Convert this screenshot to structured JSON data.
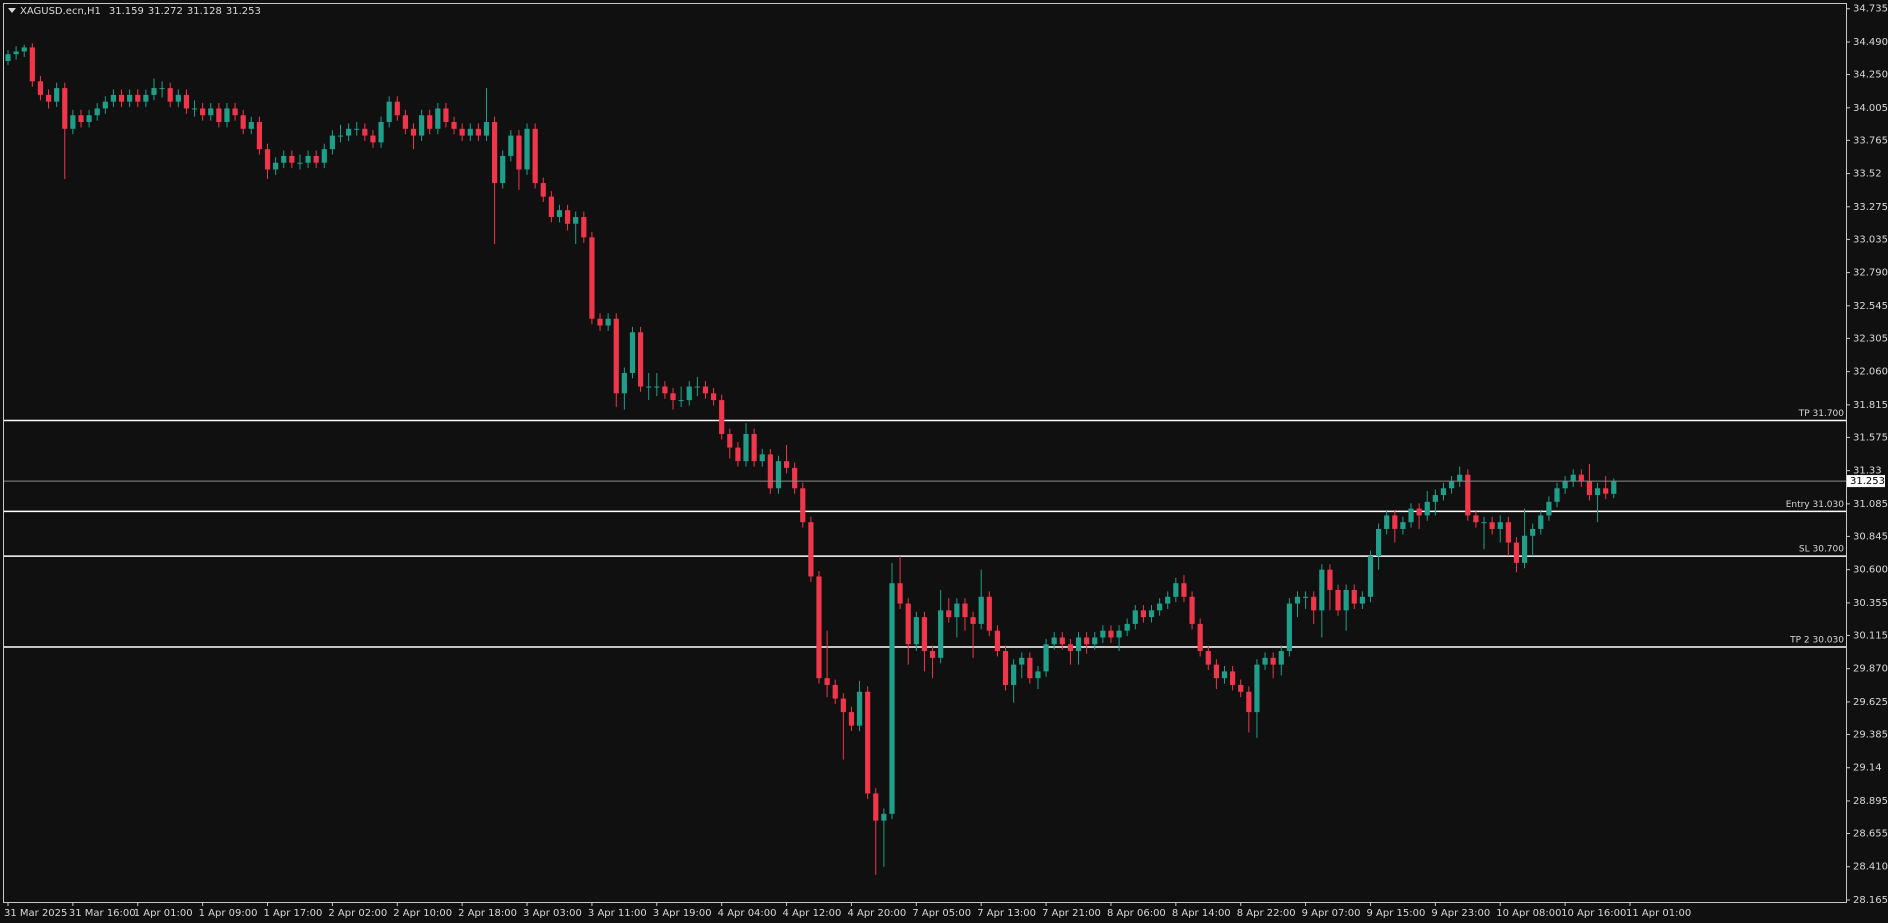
{
  "chart_data": {
    "type": "candlestick",
    "symbol": "XAGUSD.ecn,H1",
    "up_color": "#1f9e89",
    "down_color": "#f0364a",
    "background": "#101010",
    "ylim": [
      28.15,
      34.77
    ],
    "yticks": [
      34.735,
      {
        "value": 34.49,
        "label": "34.490"
      },
      {
        "value": 34.25,
        "label": "34.250"
      },
      34.005,
      33.765,
      33.52,
      33.275,
      33.035,
      {
        "value": 32.79,
        "label": "32.790"
      },
      32.545,
      32.305,
      {
        "value": 32.06,
        "label": "32.060"
      },
      31.815,
      31.575,
      31.33,
      31.085,
      30.845,
      {
        "value": 30.6,
        "label": "30.600"
      },
      30.355,
      30.115,
      {
        "value": 29.87,
        "label": "29.870"
      },
      29.625,
      29.385,
      29.14,
      28.895,
      28.655,
      {
        "value": 28.41,
        "label": "28.410"
      },
      28.165
    ],
    "xticks": [
      {
        "value": 0,
        "label": "31 Mar 2025"
      },
      {
        "value": 8,
        "label": "31 Mar 16:00"
      },
      {
        "value": 16,
        "label": "1 Apr 01:00"
      },
      {
        "value": 24,
        "label": "1 Apr 09:00"
      },
      {
        "value": 32,
        "label": "1 Apr 17:00"
      },
      {
        "value": 40,
        "label": "2 Apr 02:00"
      },
      {
        "value": 48,
        "label": "2 Apr 10:00"
      },
      {
        "value": 56,
        "label": "2 Apr 18:00"
      },
      {
        "value": 64,
        "label": "3 Apr 03:00"
      },
      {
        "value": 72,
        "label": "3 Apr 11:00"
      },
      {
        "value": 80,
        "label": "3 Apr 19:00"
      },
      {
        "value": 88,
        "label": "4 Apr 04:00"
      },
      {
        "value": 96,
        "label": "4 Apr 12:00"
      },
      {
        "value": 104,
        "label": "4 Apr 20:00"
      },
      {
        "value": 112,
        "label": "7 Apr 05:00"
      },
      {
        "value": 120,
        "label": "7 Apr 13:00"
      },
      {
        "value": 128,
        "label": "7 Apr 21:00"
      },
      {
        "value": 136,
        "label": "8 Apr 06:00"
      },
      {
        "value": 144,
        "label": "8 Apr 14:00"
      },
      {
        "value": 152,
        "label": "8 Apr 22:00"
      },
      {
        "value": 160,
        "label": "9 Apr 07:00"
      },
      {
        "value": 168,
        "label": "9 Apr 15:00"
      },
      {
        "value": 176,
        "label": "9 Apr 23:00"
      },
      {
        "value": 184,
        "label": "10 Apr 08:00"
      },
      {
        "value": 192,
        "label": "10 Apr 16:00"
      },
      {
        "value": 200,
        "label": "11 Apr 01:00"
      }
    ],
    "levels": [
      {
        "name": "TP 31.700",
        "value": 31.7
      },
      {
        "name": "Entry 31.030",
        "value": 31.03
      },
      {
        "name": "SL 30.700",
        "value": 30.7
      },
      {
        "name": "TP 2 30.030",
        "value": 30.03
      }
    ],
    "candles": [
      [
        34.35,
        34.43,
        34.32,
        34.4
      ],
      [
        34.4,
        34.46,
        34.36,
        34.42
      ],
      [
        34.42,
        34.47,
        34.38,
        34.45
      ],
      [
        34.45,
        34.48,
        34.16,
        34.2
      ],
      [
        34.2,
        34.24,
        34.06,
        34.1
      ],
      [
        34.1,
        34.14,
        34.0,
        34.05
      ],
      [
        34.05,
        34.19,
        34.01,
        34.15
      ],
      [
        34.15,
        34.19,
        33.48,
        33.85
      ],
      [
        33.85,
        33.99,
        33.81,
        33.95
      ],
      [
        33.95,
        33.99,
        33.86,
        33.9
      ],
      [
        33.9,
        33.99,
        33.86,
        33.95
      ],
      [
        33.95,
        34.04,
        33.91,
        34.0
      ],
      [
        34.0,
        34.09,
        33.96,
        34.05
      ],
      [
        34.05,
        34.14,
        34.01,
        34.1
      ],
      [
        34.1,
        34.14,
        34.01,
        34.05
      ],
      [
        34.05,
        34.14,
        34.01,
        34.1
      ],
      [
        34.1,
        34.14,
        34.01,
        34.05
      ],
      [
        34.05,
        34.14,
        34.01,
        34.1
      ],
      [
        34.1,
        34.22,
        34.06,
        34.15
      ],
      [
        34.15,
        34.2,
        34.08,
        34.15
      ],
      [
        34.15,
        34.19,
        34.01,
        34.05
      ],
      [
        34.05,
        34.14,
        34.01,
        34.1
      ],
      [
        34.1,
        34.14,
        33.96,
        34.0
      ],
      [
        34.0,
        34.06,
        33.94,
        34.0
      ],
      [
        34.0,
        34.04,
        33.91,
        33.95
      ],
      [
        33.95,
        34.04,
        33.91,
        34.0
      ],
      [
        34.0,
        34.04,
        33.86,
        33.9
      ],
      [
        33.9,
        34.04,
        33.86,
        34.0
      ],
      [
        34.0,
        34.04,
        33.91,
        33.95
      ],
      [
        33.95,
        33.99,
        33.81,
        33.85
      ],
      [
        33.85,
        33.94,
        33.81,
        33.9
      ],
      [
        33.9,
        33.94,
        33.66,
        33.7
      ],
      [
        33.7,
        33.74,
        33.48,
        33.55
      ],
      [
        33.55,
        33.64,
        33.51,
        33.6
      ],
      [
        33.6,
        33.69,
        33.56,
        33.65
      ],
      [
        33.65,
        33.69,
        33.56,
        33.6
      ],
      [
        33.6,
        33.66,
        33.55,
        33.6
      ],
      [
        33.6,
        33.69,
        33.56,
        33.65
      ],
      [
        33.65,
        33.69,
        33.56,
        33.6
      ],
      [
        33.6,
        33.74,
        33.56,
        33.7
      ],
      [
        33.7,
        33.84,
        33.66,
        33.8
      ],
      [
        33.8,
        33.88,
        33.75,
        33.8
      ],
      [
        33.8,
        33.89,
        33.76,
        33.85
      ],
      [
        33.85,
        33.9,
        33.8,
        33.85
      ],
      [
        33.85,
        33.89,
        33.76,
        33.8
      ],
      [
        33.8,
        33.84,
        33.71,
        33.75
      ],
      [
        33.75,
        33.94,
        33.71,
        33.9
      ],
      [
        33.9,
        34.09,
        33.86,
        34.05
      ],
      [
        34.05,
        34.09,
        33.91,
        33.95
      ],
      [
        33.95,
        33.99,
        33.81,
        33.85
      ],
      [
        33.85,
        33.89,
        33.7,
        33.8
      ],
      [
        33.8,
        33.99,
        33.76,
        33.95
      ],
      [
        33.95,
        33.99,
        33.81,
        33.85
      ],
      [
        33.85,
        34.04,
        33.81,
        34.0
      ],
      [
        34.0,
        34.04,
        33.86,
        33.9
      ],
      [
        33.9,
        33.94,
        33.81,
        33.85
      ],
      [
        33.85,
        33.89,
        33.76,
        33.8
      ],
      [
        33.8,
        33.89,
        33.76,
        33.85
      ],
      [
        33.85,
        33.89,
        33.76,
        33.8
      ],
      [
        33.8,
        34.15,
        33.76,
        33.9
      ],
      [
        33.9,
        33.94,
        33.0,
        33.45
      ],
      [
        33.45,
        33.69,
        33.41,
        33.65
      ],
      [
        33.65,
        33.84,
        33.61,
        33.8
      ],
      [
        33.8,
        33.84,
        33.4,
        33.55
      ],
      [
        33.55,
        33.89,
        33.51,
        33.85
      ],
      [
        33.85,
        33.89,
        33.41,
        33.45
      ],
      [
        33.45,
        33.49,
        33.31,
        33.35
      ],
      [
        33.35,
        33.39,
        33.16,
        33.2
      ],
      [
        33.2,
        33.29,
        33.16,
        33.25
      ],
      [
        33.25,
        33.29,
        33.1,
        33.15
      ],
      [
        33.15,
        33.24,
        33.0,
        33.2
      ],
      [
        33.2,
        33.24,
        33.01,
        33.05
      ],
      [
        33.05,
        33.09,
        32.41,
        32.45
      ],
      [
        32.45,
        32.49,
        32.36,
        32.4
      ],
      [
        32.4,
        32.49,
        32.36,
        32.45
      ],
      [
        32.45,
        32.49,
        31.8,
        31.9
      ],
      [
        31.9,
        32.09,
        31.78,
        32.05
      ],
      [
        32.05,
        32.39,
        32.01,
        32.35
      ],
      [
        32.35,
        32.39,
        31.91,
        31.95
      ],
      [
        31.95,
        32.05,
        31.85,
        31.95
      ],
      [
        31.95,
        32.05,
        31.88,
        31.95
      ],
      [
        31.95,
        31.99,
        31.86,
        31.9
      ],
      [
        31.9,
        31.94,
        31.78,
        31.85
      ],
      [
        31.85,
        31.95,
        31.8,
        31.85
      ],
      [
        31.85,
        31.99,
        31.81,
        31.95
      ],
      [
        31.95,
        32.02,
        31.88,
        31.95
      ],
      [
        31.95,
        31.99,
        31.86,
        31.9
      ],
      [
        31.9,
        31.94,
        31.81,
        31.85
      ],
      [
        31.85,
        31.89,
        31.56,
        31.6
      ],
      [
        31.6,
        31.64,
        31.42,
        31.5
      ],
      [
        31.5,
        31.54,
        31.36,
        31.4
      ],
      [
        31.4,
        31.68,
        31.36,
        31.6
      ],
      [
        31.6,
        31.64,
        31.36,
        31.4
      ],
      [
        31.4,
        31.49,
        31.36,
        31.45
      ],
      [
        31.45,
        31.49,
        31.16,
        31.2
      ],
      [
        31.2,
        31.44,
        31.16,
        31.4
      ],
      [
        31.4,
        31.52,
        31.31,
        31.35
      ],
      [
        31.35,
        31.39,
        31.16,
        31.2
      ],
      [
        31.2,
        31.24,
        30.91,
        30.95
      ],
      [
        30.95,
        30.99,
        30.51,
        30.55
      ],
      [
        30.55,
        30.59,
        29.76,
        29.8
      ],
      [
        29.8,
        30.15,
        29.66,
        29.75
      ],
      [
        29.75,
        29.79,
        29.61,
        29.65
      ],
      [
        29.65,
        29.69,
        29.2,
        29.55
      ],
      [
        29.55,
        29.59,
        29.41,
        29.45
      ],
      [
        29.45,
        29.78,
        29.41,
        29.7
      ],
      [
        29.7,
        29.74,
        28.91,
        28.95
      ],
      [
        28.95,
        28.99,
        28.35,
        28.75
      ],
      [
        28.75,
        28.84,
        28.41,
        28.8
      ],
      [
        28.8,
        30.65,
        28.76,
        30.5
      ],
      [
        30.5,
        30.7,
        30.31,
        30.35
      ],
      [
        30.35,
        30.39,
        29.9,
        30.05
      ],
      [
        30.05,
        30.29,
        30.0,
        30.25
      ],
      [
        30.25,
        30.29,
        29.85,
        30.0
      ],
      [
        30.0,
        30.04,
        29.8,
        29.95
      ],
      [
        29.95,
        30.45,
        29.91,
        30.3
      ],
      [
        30.3,
        30.39,
        30.21,
        30.25
      ],
      [
        30.25,
        30.39,
        30.1,
        30.35
      ],
      [
        30.35,
        30.39,
        30.15,
        30.25
      ],
      [
        30.25,
        30.29,
        29.95,
        30.2
      ],
      [
        30.2,
        30.6,
        30.16,
        30.4
      ],
      [
        30.4,
        30.44,
        30.11,
        30.15
      ],
      [
        30.15,
        30.19,
        29.96,
        30.0
      ],
      [
        30.0,
        30.04,
        29.71,
        29.75
      ],
      [
        29.75,
        29.94,
        29.62,
        29.9
      ],
      [
        29.9,
        29.99,
        29.8,
        29.95
      ],
      [
        29.95,
        29.99,
        29.76,
        29.8
      ],
      [
        29.8,
        29.89,
        29.72,
        29.85
      ],
      [
        29.85,
        30.09,
        29.81,
        30.05
      ],
      [
        30.05,
        30.14,
        30.01,
        30.1
      ],
      [
        30.1,
        30.14,
        30.01,
        30.05
      ],
      [
        30.05,
        30.09,
        29.9,
        30.0
      ],
      [
        30.0,
        30.14,
        29.9,
        30.1
      ],
      [
        30.1,
        30.14,
        29.98,
        30.05
      ],
      [
        30.05,
        30.14,
        30.01,
        30.1
      ],
      [
        30.1,
        30.19,
        30.06,
        30.15
      ],
      [
        30.15,
        30.19,
        30.06,
        30.1
      ],
      [
        30.1,
        30.19,
        30.0,
        30.15
      ],
      [
        30.15,
        30.24,
        30.11,
        30.2
      ],
      [
        30.2,
        30.34,
        30.16,
        30.3
      ],
      [
        30.3,
        30.34,
        30.21,
        30.25
      ],
      [
        30.25,
        30.34,
        30.21,
        30.3
      ],
      [
        30.3,
        30.39,
        30.26,
        30.35
      ],
      [
        30.35,
        30.44,
        30.31,
        30.4
      ],
      [
        30.4,
        30.54,
        30.36,
        30.5
      ],
      [
        30.5,
        30.56,
        30.36,
        30.4
      ],
      [
        30.4,
        30.44,
        30.16,
        30.2
      ],
      [
        30.2,
        30.24,
        29.96,
        30.0
      ],
      [
        30.0,
        30.04,
        29.86,
        29.9
      ],
      [
        29.9,
        29.94,
        29.72,
        29.8
      ],
      [
        29.8,
        29.89,
        29.76,
        29.85
      ],
      [
        29.85,
        29.89,
        29.71,
        29.75
      ],
      [
        29.75,
        29.79,
        29.66,
        29.7
      ],
      [
        29.7,
        29.74,
        29.4,
        29.55
      ],
      [
        29.55,
        29.94,
        29.36,
        29.9
      ],
      [
        29.9,
        29.99,
        29.86,
        29.95
      ],
      [
        29.95,
        29.99,
        29.8,
        29.9
      ],
      [
        29.9,
        30.04,
        29.82,
        30.0
      ],
      [
        30.0,
        30.39,
        29.96,
        30.35
      ],
      [
        30.35,
        30.44,
        30.25,
        30.4
      ],
      [
        30.4,
        30.44,
        30.31,
        30.4
      ],
      [
        30.4,
        30.44,
        30.2,
        30.3
      ],
      [
        30.3,
        30.64,
        30.1,
        30.6
      ],
      [
        30.6,
        30.64,
        30.3,
        30.45
      ],
      [
        30.45,
        30.49,
        30.26,
        30.3
      ],
      [
        30.3,
        30.49,
        30.15,
        30.45
      ],
      [
        30.45,
        30.49,
        30.31,
        30.35
      ],
      [
        30.35,
        30.44,
        30.31,
        30.4
      ],
      [
        30.4,
        30.74,
        30.36,
        30.7
      ],
      [
        30.7,
        30.94,
        30.6,
        30.9
      ],
      [
        30.9,
        31.04,
        30.86,
        31.0
      ],
      [
        31.0,
        31.04,
        30.8,
        30.9
      ],
      [
        30.9,
        30.99,
        30.86,
        30.95
      ],
      [
        30.95,
        31.09,
        30.91,
        31.05
      ],
      [
        31.05,
        31.09,
        30.9,
        31.0
      ],
      [
        31.0,
        31.18,
        30.96,
        31.1
      ],
      [
        31.1,
        31.19,
        31.0,
        31.15
      ],
      [
        31.15,
        31.24,
        31.11,
        31.2
      ],
      [
        31.2,
        31.29,
        31.16,
        31.25
      ],
      [
        31.25,
        31.36,
        31.21,
        31.3
      ],
      [
        31.3,
        31.34,
        30.96,
        31.0
      ],
      [
        31.0,
        31.04,
        30.91,
        30.95
      ],
      [
        30.95,
        30.99,
        30.75,
        30.95
      ],
      [
        30.95,
        30.99,
        30.86,
        30.9
      ],
      [
        30.9,
        31.0,
        30.8,
        30.95
      ],
      [
        30.95,
        30.99,
        30.7,
        30.8
      ],
      [
        30.8,
        30.84,
        30.58,
        30.65
      ],
      [
        30.65,
        31.05,
        30.61,
        30.85
      ],
      [
        30.85,
        30.94,
        30.7,
        30.9
      ],
      [
        30.9,
        31.04,
        30.86,
        31.0
      ],
      [
        31.0,
        31.14,
        30.96,
        31.1
      ],
      [
        31.1,
        31.24,
        31.06,
        31.2
      ],
      [
        31.2,
        31.29,
        31.16,
        31.25
      ],
      [
        31.25,
        31.34,
        31.21,
        31.3
      ],
      [
        31.3,
        31.34,
        31.21,
        31.25
      ],
      [
        31.25,
        31.38,
        31.11,
        31.15
      ],
      [
        31.15,
        31.24,
        30.95,
        31.2
      ],
      [
        31.2,
        31.29,
        31.12,
        31.16
      ],
      [
        31.159,
        31.272,
        31.128,
        31.253
      ]
    ]
  }
}
